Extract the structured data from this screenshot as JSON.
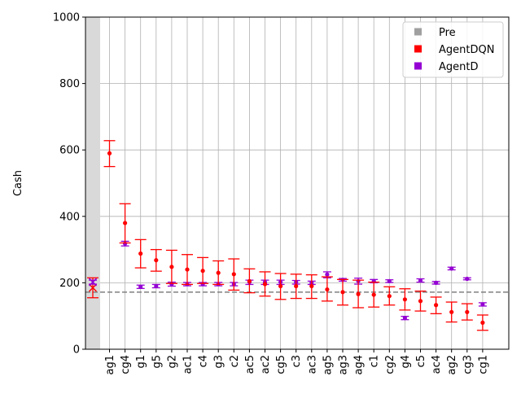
{
  "chart_data": {
    "type": "scatter",
    "title": "",
    "xlabel": "",
    "ylabel": "Cash",
    "ylim": [
      0,
      1000
    ],
    "yticks": [
      0,
      200,
      400,
      600,
      800,
      1000
    ],
    "grid": true,
    "legend_position": "top-right",
    "baseline": 172,
    "categories": [
      "ag1",
      "cg4",
      "g1",
      "g5",
      "g2",
      "ac1",
      "c4",
      "g3",
      "c2",
      "ac5",
      "ac2",
      "cg5",
      "c3",
      "ac3",
      "ag5",
      "ag3",
      "ag4",
      "c1",
      "cg2",
      "g4",
      "c5",
      "ac4",
      "ag2",
      "cg3",
      "cg1"
    ],
    "colors": {
      "Pre": "#a0a0a0",
      "AgentDQN": "#ff0000",
      "AgentD": "#9400d3",
      "baseline": "#808080",
      "grid": "#b0b0b0",
      "shade": "#d9d9d9"
    },
    "legend": [
      {
        "label": "Pre",
        "color": "#a0a0a0"
      },
      {
        "label": "AgentDQN",
        "color": "#ff0000"
      },
      {
        "label": "AgentD",
        "color": "#9400d3"
      }
    ],
    "pre": {
      "dqn": {
        "value": 185,
        "low": 155,
        "high": 215
      },
      "d": {
        "value": 202,
        "low": 196,
        "high": 208
      }
    },
    "series": [
      {
        "name": "AgentDQN",
        "values": [
          590,
          380,
          288,
          268,
          248,
          240,
          236,
          230,
          226,
          205,
          196,
          190,
          190,
          190,
          180,
          172,
          166,
          164,
          160,
          150,
          145,
          133,
          112,
          112,
          80
        ],
        "low": [
          550,
          320,
          245,
          235,
          198,
          195,
          198,
          195,
          178,
          170,
          160,
          150,
          153,
          153,
          145,
          133,
          125,
          127,
          133,
          118,
          115,
          107,
          82,
          88,
          57
        ],
        "high": [
          628,
          438,
          330,
          300,
          298,
          285,
          276,
          266,
          272,
          242,
          233,
          228,
          226,
          224,
          218,
          210,
          208,
          202,
          188,
          182,
          175,
          157,
          142,
          137,
          103
        ]
      },
      {
        "name": "AgentD",
        "values": [
          null,
          318,
          188,
          190,
          196,
          196,
          196,
          196,
          196,
          202,
          202,
          202,
          202,
          200,
          225,
          209,
          205,
          205,
          205,
          94,
          207,
          200,
          243,
          212,
          135
        ],
        "low": [
          null,
          311,
          183,
          185,
          190,
          191,
          191,
          191,
          191,
          195,
          195,
          195,
          196,
          195,
          215,
          205,
          196,
          200,
          201,
          89,
          202,
          196,
          239,
          209,
          130
        ],
        "high": [
          null,
          325,
          193,
          195,
          202,
          201,
          201,
          201,
          201,
          208,
          208,
          208,
          207,
          205,
          233,
          213,
          214,
          210,
          209,
          99,
          212,
          204,
          247,
          215,
          140
        ]
      }
    ]
  }
}
